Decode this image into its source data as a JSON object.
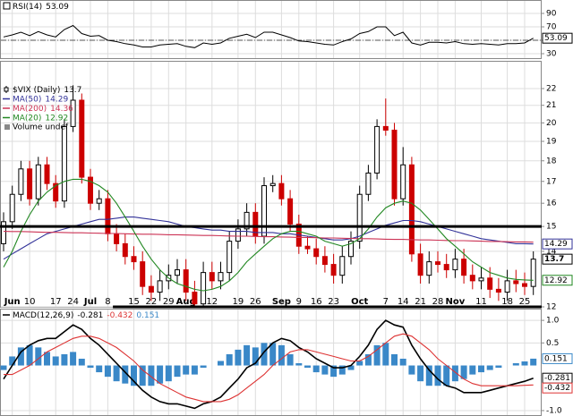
{
  "chart_data": [
    {
      "type": "line",
      "series": [
        {
          "name": "RSI(14)",
          "color": "#000000",
          "boxed": true,
          "values": [
            55,
            58,
            62,
            57,
            63,
            58,
            55,
            66,
            72,
            60,
            56,
            57,
            50,
            48,
            45,
            43,
            40,
            40,
            43,
            44,
            45,
            41,
            39,
            46,
            44,
            46,
            53,
            56,
            59,
            54,
            62,
            62,
            58,
            54,
            49,
            48,
            46,
            44,
            43,
            48,
            52,
            60,
            63,
            70,
            70,
            57,
            62,
            46,
            43,
            47,
            47,
            46,
            48,
            45,
            44,
            45,
            44,
            43,
            45,
            45,
            46,
            53.09
          ]
        }
      ],
      "ylim": [
        22,
        110
      ],
      "yticks": [
        90,
        70,
        50,
        30
      ],
      "reference_line": 50,
      "grid": true
    },
    {
      "type": "candlestick",
      "categories": [
        null,
        "Jun",
        null,
        "10",
        null,
        null,
        "17",
        null,
        "24",
        null,
        "Jul",
        null,
        "8",
        null,
        null,
        "15",
        null,
        "22",
        null,
        "29",
        null,
        "Aug",
        null,
        null,
        "12",
        null,
        null,
        "19",
        null,
        "26",
        null,
        null,
        "Sep",
        null,
        "9",
        null,
        "16",
        null,
        "23",
        null,
        null,
        "Oct",
        null,
        null,
        "7",
        null,
        "14",
        null,
        "21",
        null,
        "28",
        null,
        "Nov",
        null,
        null,
        "11",
        null,
        null,
        "18",
        null,
        "25",
        null
      ],
      "series": [
        {
          "name": "$VIX (Daily)",
          "up_color": "#000000",
          "down_color": "#cc0000",
          "boxed": true,
          "open": [
            14.3,
            15.2,
            16.4,
            17.6,
            16.2,
            17.8,
            16.9,
            16.1,
            19.8,
            21.3,
            17.2,
            16.0,
            16.2,
            14.7,
            14.3,
            13.8,
            13.6,
            12.7,
            12.5,
            12.9,
            13.1,
            13.3,
            12.5,
            12.1,
            13.2,
            12.9,
            13.2,
            14.4,
            14.9,
            15.6,
            14.6,
            16.8,
            16.9,
            16.2,
            15.1,
            14.2,
            14.1,
            13.8,
            13.5,
            13.1,
            13.8,
            14.4,
            16.4,
            17.4,
            19.8,
            19.6,
            16.2,
            17.8,
            13.9,
            13.1,
            13.6,
            13.5,
            13.3,
            13.7,
            13.1,
            12.9,
            13.0,
            12.6,
            12.5,
            12.9,
            12.8,
            12.7
          ],
          "high": [
            15.6,
            16.8,
            18.0,
            18.0,
            18.2,
            18.2,
            17.3,
            20.2,
            22.2,
            21.7,
            17.6,
            16.6,
            16.6,
            15.1,
            14.7,
            14.2,
            14.0,
            13.1,
            13.3,
            13.5,
            13.7,
            13.7,
            12.9,
            13.6,
            13.6,
            13.6,
            14.8,
            15.3,
            16.0,
            16.0,
            17.2,
            17.3,
            17.3,
            16.6,
            15.5,
            14.6,
            14.5,
            14.2,
            13.9,
            14.2,
            14.8,
            16.8,
            17.8,
            20.2,
            21.4,
            20.0,
            18.7,
            18.2,
            14.3,
            14.0,
            14.0,
            13.9,
            14.1,
            14.1,
            13.5,
            13.4,
            13.4,
            13.0,
            13.3,
            13.3,
            13.2,
            14.0
          ],
          "low": [
            14.0,
            14.9,
            16.1,
            15.9,
            15.9,
            16.6,
            15.8,
            15.8,
            19.5,
            16.9,
            15.7,
            15.7,
            14.4,
            14.0,
            13.5,
            13.3,
            12.4,
            12.2,
            12.2,
            12.6,
            12.8,
            12.2,
            12.0,
            12.0,
            12.6,
            12.6,
            12.9,
            14.1,
            14.6,
            14.3,
            14.3,
            16.5,
            15.9,
            14.8,
            13.9,
            13.9,
            13.5,
            13.2,
            12.8,
            12.8,
            13.5,
            14.1,
            16.1,
            17.1,
            19.3,
            15.9,
            15.9,
            13.6,
            12.8,
            12.8,
            13.2,
            13.0,
            13.0,
            12.8,
            12.6,
            12.6,
            12.3,
            12.2,
            12.2,
            12.5,
            12.4,
            12.4
          ],
          "close": [
            15.2,
            16.4,
            17.6,
            16.2,
            17.8,
            16.9,
            16.1,
            19.8,
            21.3,
            17.2,
            16.0,
            16.2,
            14.7,
            14.3,
            13.8,
            13.6,
            12.7,
            12.5,
            12.9,
            13.1,
            13.3,
            12.5,
            12.1,
            13.2,
            12.9,
            13.2,
            14.4,
            14.9,
            15.6,
            14.6,
            16.8,
            16.9,
            16.2,
            15.1,
            14.2,
            14.1,
            13.8,
            13.5,
            13.1,
            13.8,
            14.4,
            16.4,
            17.4,
            19.8,
            19.6,
            16.2,
            17.8,
            13.9,
            13.1,
            13.6,
            13.5,
            13.3,
            13.7,
            13.1,
            12.9,
            13.0,
            12.6,
            12.5,
            12.9,
            12.8,
            12.7,
            13.7
          ]
        },
        {
          "name": "MA(50)",
          "color": "#333399",
          "boxed": true,
          "values": [
            13.7,
            13.9,
            14.1,
            14.3,
            14.5,
            14.7,
            14.8,
            14.9,
            15.0,
            15.1,
            15.2,
            15.3,
            15.3,
            15.35,
            15.4,
            15.4,
            15.35,
            15.3,
            15.25,
            15.2,
            15.1,
            15.0,
            14.95,
            14.9,
            14.85,
            14.85,
            14.8,
            14.8,
            14.8,
            14.75,
            14.75,
            14.75,
            14.7,
            14.7,
            14.65,
            14.6,
            14.55,
            14.5,
            14.45,
            14.45,
            14.5,
            14.6,
            14.75,
            14.9,
            15.05,
            15.15,
            15.25,
            15.25,
            15.2,
            15.1,
            15.0,
            14.9,
            14.8,
            14.7,
            14.6,
            14.5,
            14.45,
            14.4,
            14.35,
            14.3,
            14.3,
            14.29
          ]
        },
        {
          "name": "MA(200)",
          "color": "#cc3355",
          "boxed": false,
          "values": [
            14.8,
            14.79,
            14.79,
            14.78,
            14.77,
            14.76,
            14.76,
            14.75,
            14.74,
            14.74,
            14.73,
            14.72,
            14.71,
            14.71,
            14.7,
            14.69,
            14.68,
            14.68,
            14.67,
            14.66,
            14.66,
            14.65,
            14.64,
            14.63,
            14.63,
            14.62,
            14.61,
            14.6,
            14.6,
            14.59,
            14.58,
            14.58,
            14.57,
            14.56,
            14.55,
            14.55,
            14.54,
            14.53,
            14.53,
            14.52,
            14.51,
            14.5,
            14.5,
            14.49,
            14.48,
            14.47,
            14.47,
            14.46,
            14.45,
            14.45,
            14.44,
            14.43,
            14.42,
            14.42,
            14.41,
            14.4,
            14.39,
            14.39,
            14.38,
            14.37,
            14.37,
            14.36
          ]
        },
        {
          "name": "MA(20)",
          "color": "#228822",
          "boxed": true,
          "values": [
            13.4,
            14.0,
            14.8,
            15.5,
            16.1,
            16.5,
            16.8,
            17.0,
            17.1,
            17.1,
            17.0,
            16.8,
            16.5,
            16.0,
            15.4,
            14.8,
            14.2,
            13.7,
            13.3,
            13.0,
            12.8,
            12.7,
            12.6,
            12.55,
            12.6,
            12.7,
            12.9,
            13.2,
            13.6,
            13.9,
            14.2,
            14.5,
            14.7,
            14.8,
            14.8,
            14.7,
            14.6,
            14.4,
            14.3,
            14.2,
            14.3,
            14.5,
            14.9,
            15.4,
            15.8,
            16.0,
            16.1,
            16.0,
            15.7,
            15.3,
            14.9,
            14.5,
            14.2,
            13.9,
            13.6,
            13.4,
            13.2,
            13.1,
            13.0,
            12.95,
            12.93,
            12.92
          ]
        }
      ],
      "volume_label": "Volume undef",
      "ylim": [
        11.97,
        23.76
      ],
      "yticks": [
        22,
        21,
        20,
        19,
        18,
        17,
        16,
        15,
        14,
        12
      ],
      "log_scale": true,
      "grid": true,
      "hlines": [
        {
          "value": 15,
          "start": 0
        },
        {
          "value": 12,
          "start": 13
        }
      ]
    },
    {
      "type": "macd",
      "series": [
        {
          "name": "MACD(12,26,9)",
          "color": "#000000",
          "boxed": true,
          "values": [
            -0.3,
            0.0,
            0.3,
            0.45,
            0.55,
            0.6,
            0.6,
            0.75,
            0.9,
            0.8,
            0.6,
            0.45,
            0.25,
            0.05,
            -0.15,
            -0.35,
            -0.55,
            -0.7,
            -0.8,
            -0.85,
            -0.85,
            -0.9,
            -0.95,
            -0.85,
            -0.8,
            -0.7,
            -0.5,
            -0.3,
            -0.05,
            0.05,
            0.3,
            0.5,
            0.6,
            0.55,
            0.4,
            0.3,
            0.15,
            0.05,
            -0.05,
            -0.05,
            0.0,
            0.2,
            0.45,
            0.8,
            1.0,
            0.9,
            0.85,
            0.45,
            0.15,
            -0.1,
            -0.3,
            -0.45,
            -0.5,
            -0.6,
            -0.6,
            -0.6,
            -0.55,
            -0.5,
            -0.45,
            -0.4,
            -0.35,
            -0.281
          ]
        },
        {
          "color": "#dd3333",
          "boxed": true,
          "values": [
            -0.2,
            -0.2,
            -0.1,
            0.0,
            0.15,
            0.3,
            0.4,
            0.5,
            0.6,
            0.65,
            0.65,
            0.6,
            0.5,
            0.4,
            0.25,
            0.1,
            -0.1,
            -0.25,
            -0.4,
            -0.5,
            -0.6,
            -0.7,
            -0.75,
            -0.8,
            -0.8,
            -0.8,
            -0.75,
            -0.65,
            -0.5,
            -0.35,
            -0.2,
            0.0,
            0.15,
            0.3,
            0.35,
            0.35,
            0.3,
            0.25,
            0.2,
            0.15,
            0.1,
            0.1,
            0.2,
            0.35,
            0.5,
            0.65,
            0.7,
            0.65,
            0.5,
            0.35,
            0.15,
            0.0,
            -0.15,
            -0.3,
            -0.4,
            -0.45,
            -0.45,
            -0.45,
            -0.45,
            -0.45,
            -0.44,
            -0.432
          ]
        },
        {
          "color": "#3a88c8",
          "style": "bar",
          "boxed": true,
          "values": [
            -0.1,
            0.2,
            0.4,
            0.45,
            0.4,
            0.3,
            0.2,
            0.25,
            0.3,
            0.15,
            -0.05,
            -0.15,
            -0.25,
            -0.35,
            -0.4,
            -0.45,
            -0.45,
            -0.45,
            -0.4,
            -0.35,
            -0.25,
            -0.2,
            -0.2,
            -0.05,
            0.0,
            0.1,
            0.25,
            0.35,
            0.45,
            0.4,
            0.5,
            0.5,
            0.45,
            0.25,
            0.05,
            -0.05,
            -0.15,
            -0.2,
            -0.25,
            -0.2,
            -0.1,
            0.1,
            0.25,
            0.45,
            0.5,
            0.25,
            0.15,
            -0.2,
            -0.35,
            -0.45,
            -0.45,
            -0.45,
            -0.35,
            -0.3,
            -0.2,
            -0.15,
            -0.1,
            -0.05,
            0.0,
            0.05,
            0.09,
            0.151
          ]
        }
      ],
      "ylim": [
        -1.12,
        1.26
      ],
      "yticks": [
        {
          "value": 1,
          "label": "1.0"
        },
        0.5,
        {
          "value": -1,
          "label": "-1.0"
        }
      ],
      "grid": true
    }
  ]
}
